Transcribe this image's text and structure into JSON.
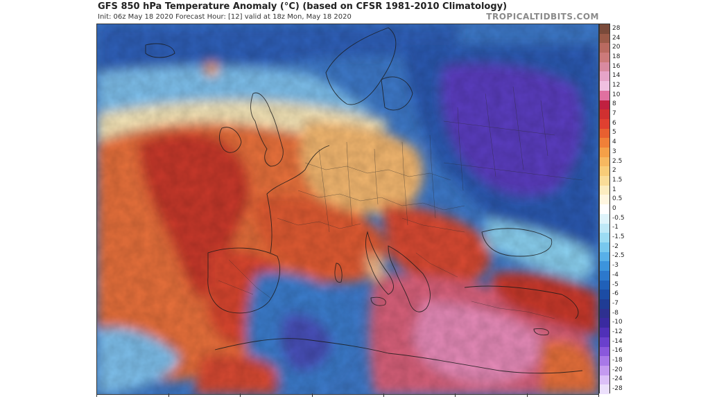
{
  "header": {
    "title": "GFS 850 hPa Temperature Anomaly (°C) (based on CFSR 1981-2010 Climatology)",
    "subtitle": "Init: 06z May 18 2020   Forecast Hour: [12]   valid at 18z Mon, May 18 2020",
    "brand": "TROPICALTIDBITS.COM"
  },
  "map": {
    "variable": "850 hPa Temperature Anomaly",
    "units": "°C",
    "region": "Europe"
  },
  "colorbar": {
    "levels": [
      "28",
      "24",
      "20",
      "18",
      "16",
      "14",
      "12",
      "10",
      "8",
      "7",
      "6",
      "5",
      "4",
      "3",
      "2.5",
      "2",
      "1.5",
      "1",
      "0.5",
      "0",
      "-0.5",
      "-1",
      "-1.5",
      "-2",
      "-2.5",
      "-3",
      "-4",
      "-5",
      "-6",
      "-7",
      "-8",
      "-10",
      "-12",
      "-14",
      "-16",
      "-18",
      "-20",
      "-24",
      "-28"
    ],
    "colors": [
      "#7a4a3a",
      "#9a5a48",
      "#b96a60",
      "#cc7a7a",
      "#d98aa0",
      "#e6a4c8",
      "#f0c0e0",
      "#e070a0",
      "#c02040",
      "#d03030",
      "#e04030",
      "#e86030",
      "#f08038",
      "#f4a048",
      "#f6b860",
      "#f8cc78",
      "#fadc98",
      "#fcecc0",
      "#fff6e0",
      "#ffffff",
      "#dff4fb",
      "#bfe9f7",
      "#9cdcf3",
      "#78c8ee",
      "#58b0e8",
      "#3c94dc",
      "#2c78cc",
      "#2060b8",
      "#1c4ca4",
      "#203c94",
      "#2e3090",
      "#3a2aa0",
      "#5030b8",
      "#6a40cc",
      "#8a58dc",
      "#a878e8",
      "#c49af0",
      "#dcc0f8",
      "#ece0fc"
    ]
  }
}
